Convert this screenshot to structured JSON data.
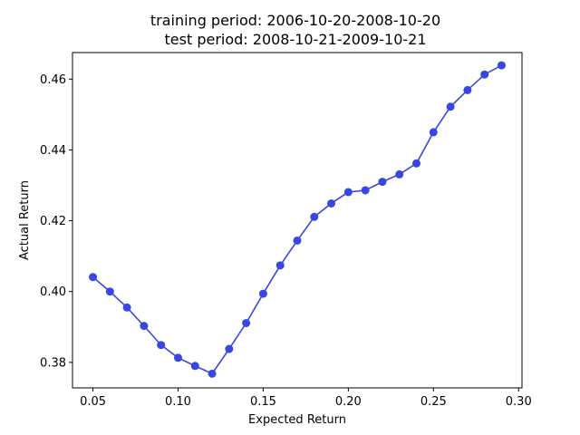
{
  "chart_data": {
    "type": "line",
    "title": "training period: 2006-10-20-2008-10-20",
    "subtitle": "test period: 2008-10-21-2009-10-21",
    "xlabel": "Expected Return",
    "ylabel": "Actual Return",
    "xlim": [
      0.038,
      0.302
    ],
    "ylim": [
      0.3728,
      0.4675
    ],
    "xticks": [
      "0.05",
      "0.10",
      "0.15",
      "0.20",
      "0.25",
      "0.30"
    ],
    "yticks": [
      "0.38",
      "0.40",
      "0.42",
      "0.44",
      "0.46"
    ],
    "grid": false,
    "color": "#3a46e0",
    "x": [
      0.05,
      0.06,
      0.07,
      0.08,
      0.09,
      0.1,
      0.11,
      0.12,
      0.13,
      0.14,
      0.15,
      0.16,
      0.17,
      0.18,
      0.19,
      0.2,
      0.21,
      0.22,
      0.23,
      0.24,
      0.25,
      0.26,
      0.27,
      0.28,
      0.29
    ],
    "y": [
      0.4041,
      0.4,
      0.3955,
      0.3903,
      0.3849,
      0.3813,
      0.379,
      0.3768,
      0.3838,
      0.3911,
      0.3994,
      0.4074,
      0.4144,
      0.4211,
      0.4249,
      0.4281,
      0.4286,
      0.431,
      0.4331,
      0.4362,
      0.445,
      0.4522,
      0.4569,
      0.4613,
      0.4639
    ]
  }
}
